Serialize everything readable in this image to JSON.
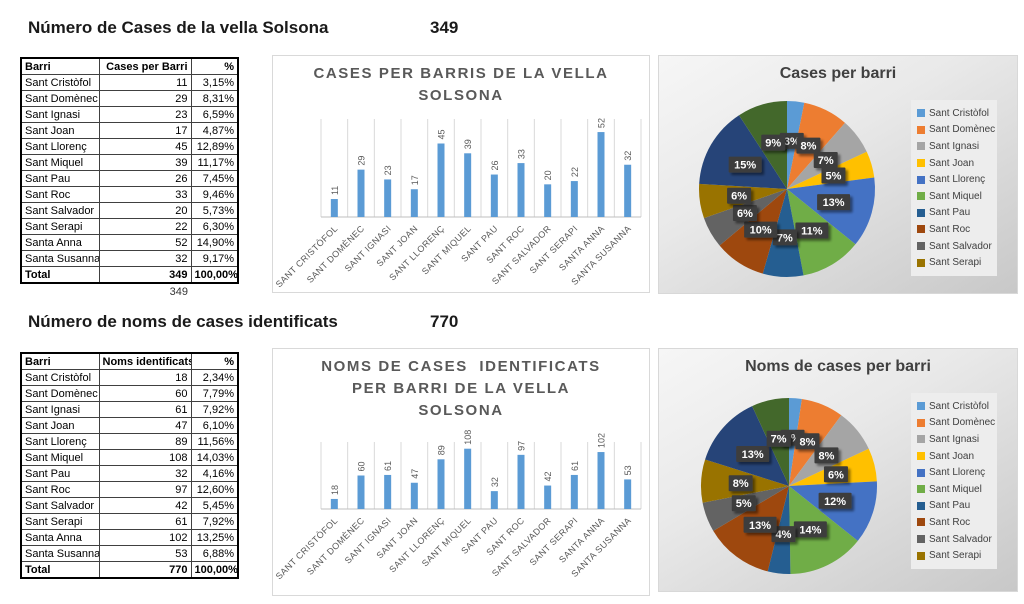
{
  "palette": {
    "series_colors": [
      "#5B9BD5",
      "#ED7D31",
      "#A5A5A5",
      "#FFC000",
      "#4472C4",
      "#70AD47",
      "#255E91",
      "#9E480E",
      "#636363",
      "#997300",
      "#264478",
      "#43682B"
    ],
    "bar_color": "#5B9BD5",
    "label_box_color": "#3E3E3E",
    "chart_title_gray": "#595959"
  },
  "section1": {
    "title": "Número de Cases de la vella Solsona",
    "total": "349",
    "table": {
      "headers": [
        "Barri",
        "Cases per Barri",
        "%"
      ],
      "rows": [
        [
          "Sant Cristòfol",
          "11",
          "3,15%"
        ],
        [
          "Sant Domènec",
          "29",
          "8,31%"
        ],
        [
          "Sant Ignasi",
          "23",
          "6,59%"
        ],
        [
          "Sant Joan",
          "17",
          "4,87%"
        ],
        [
          "Sant Llorenç",
          "45",
          "12,89%"
        ],
        [
          "Sant Miquel",
          "39",
          "11,17%"
        ],
        [
          "Sant Pau",
          "26",
          "7,45%"
        ],
        [
          "Sant Roc",
          "33",
          "9,46%"
        ],
        [
          "Sant Salvador",
          "20",
          "5,73%"
        ],
        [
          "Sant Serapi",
          "22",
          "6,30%"
        ],
        [
          "Santa Anna",
          "52",
          "14,90%"
        ],
        [
          "Santa Susanna",
          "32",
          "9,17%"
        ]
      ],
      "total_row": [
        "Total",
        "349",
        "100,00%"
      ],
      "footnote": "349"
    }
  },
  "section2": {
    "title": "Número de noms de cases identificats",
    "total": "770",
    "table": {
      "headers": [
        "Barri",
        "Noms identificats",
        "%"
      ],
      "rows": [
        [
          "Sant Cristòfol",
          "18",
          "2,34%"
        ],
        [
          "Sant Domènec",
          "60",
          "7,79%"
        ],
        [
          "Sant Ignasi",
          "61",
          "7,92%"
        ],
        [
          "Sant Joan",
          "47",
          "6,10%"
        ],
        [
          "Sant Llorenç",
          "89",
          "11,56%"
        ],
        [
          "Sant Miquel",
          "108",
          "14,03%"
        ],
        [
          "Sant Pau",
          "32",
          "4,16%"
        ],
        [
          "Sant Roc",
          "97",
          "12,60%"
        ],
        [
          "Sant Salvador",
          "42",
          "5,45%"
        ],
        [
          "Sant Serapi",
          "61",
          "7,92%"
        ],
        [
          "Santa Anna",
          "102",
          "13,25%"
        ],
        [
          "Santa Susanna",
          "53",
          "6,88%"
        ]
      ],
      "total_row": [
        "Total",
        "770",
        "100,00%"
      ]
    }
  },
  "chart_data": [
    {
      "id": "bar1",
      "type": "bar",
      "title": "CASES PER BARRIS DE LA VELLA\nSOLSONA",
      "categories": [
        "SANT CRISTÒFOL",
        "SANT DOMÈNEC",
        "SANT IGNASI",
        "SANT JOAN",
        "SANT LLORENÇ",
        "SANT MIQUEL",
        "SANT PAU",
        "SANT ROC",
        "SANT SALVADOR",
        "SANT SERAPI",
        "SANTA ANNA",
        "SANTA SUSANNA"
      ],
      "values": [
        11,
        29,
        23,
        17,
        45,
        39,
        26,
        33,
        20,
        22,
        52,
        32
      ],
      "xlabel": "",
      "ylabel": "",
      "ylim": [
        0,
        60
      ],
      "grid": "vertical-category-lines",
      "legend": "none",
      "data_labels": "rotated-90-above-bars"
    },
    {
      "id": "pie1",
      "type": "pie",
      "title": "Cases per barri",
      "categories": [
        "Sant Cristòfol",
        "Sant Domènec",
        "Sant Ignasi",
        "Sant Joan",
        "Sant Llorenç",
        "Sant Miquel",
        "Sant Pau",
        "Sant Roc",
        "Sant Salvador",
        "Sant Serapi",
        "Santa Anna",
        "Santa Susanna"
      ],
      "values": [
        11,
        29,
        23,
        17,
        45,
        39,
        26,
        33,
        20,
        22,
        52,
        32
      ],
      "percent_labels": [
        "3%",
        "8%",
        "7%",
        "5%",
        "13%",
        "11%",
        "7%",
        "10%",
        "6%",
        "6%",
        "15%",
        "9%"
      ],
      "legend_position": "right",
      "legend_visible_entries": [
        "Sant Cristòfol",
        "Sant Domènec",
        "Sant Ignasi",
        "Sant Joan",
        "Sant Llorenç",
        "Sant Miquel",
        "Sant Pau",
        "Sant Roc",
        "Sant Salvador",
        "Sant Serapi"
      ]
    },
    {
      "id": "bar2",
      "type": "bar",
      "title": "NOMS DE CASES  IDENTIFICATS\nPER BARRI DE LA VELLA\nSOLSONA",
      "categories": [
        "SANT CRISTÒFOL",
        "SANT DOMÈNEC",
        "SANT IGNASI",
        "SANT JOAN",
        "SANT LLORENÇ",
        "SANT MIQUEL",
        "SANT PAU",
        "SANT ROC",
        "SANT SALVADOR",
        "SANT SERAPI",
        "SANTA ANNA",
        "SANTA SUSANNA"
      ],
      "values": [
        18,
        60,
        61,
        47,
        89,
        108,
        32,
        97,
        42,
        61,
        102,
        53
      ],
      "xlabel": "",
      "ylabel": "",
      "ylim": [
        0,
        120
      ],
      "grid": "vertical-category-lines",
      "legend": "none",
      "data_labels": "rotated-90-above-bars"
    },
    {
      "id": "pie2",
      "type": "pie",
      "title": "Noms de cases per barri",
      "categories": [
        "Sant Cristòfol",
        "Sant Domènec",
        "Sant Ignasi",
        "Sant Joan",
        "Sant Llorenç",
        "Sant Miquel",
        "Sant Pau",
        "Sant Roc",
        "Sant Salvador",
        "Sant Serapi",
        "Santa Anna",
        "Santa Susanna"
      ],
      "values": [
        18,
        60,
        61,
        47,
        89,
        108,
        32,
        97,
        42,
        61,
        102,
        53
      ],
      "percent_labels": [
        "2%",
        "8%",
        "8%",
        "6%",
        "12%",
        "14%",
        "4%",
        "13%",
        "5%",
        "8%",
        "13%",
        "7%"
      ],
      "legend_position": "right",
      "legend_visible_entries": [
        "Sant Cristòfol",
        "Sant Domènec",
        "Sant Ignasi",
        "Sant Joan",
        "Sant Llorenç",
        "Sant Miquel",
        "Sant Pau",
        "Sant Roc",
        "Sant Salvador",
        "Sant Serapi"
      ]
    }
  ]
}
